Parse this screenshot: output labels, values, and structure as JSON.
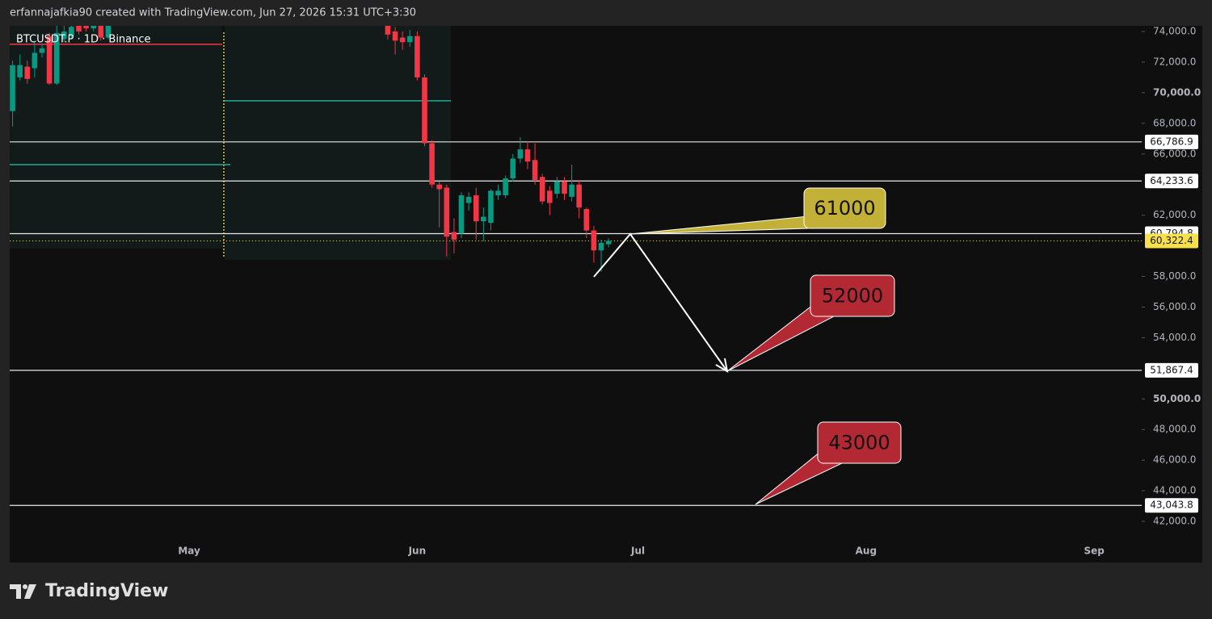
{
  "header": {
    "credit": "erfannajafkia90 created with TradingView.com, Jun 27, 2026 15:31 UTC+3:30",
    "brand": "TradingView"
  },
  "chart_data": {
    "type": "candlestick",
    "title": "BTCUSDT.P · 1D · Binance",
    "up_color": "#089981",
    "down_color": "#f23645",
    "grid": false,
    "categories": [
      null,
      null,
      null,
      null,
      null,
      null,
      null,
      null,
      null,
      null,
      null,
      null,
      null,
      null,
      null,
      null,
      null,
      null,
      null,
      null,
      null,
      null,
      null,
      null,
      "May",
      null,
      null,
      null,
      null,
      null,
      null,
      null,
      null,
      null,
      null,
      null,
      null,
      null,
      null,
      null,
      null,
      null,
      null,
      null,
      null,
      null,
      null,
      null,
      null,
      null,
      null,
      null,
      null,
      null,
      null,
      "Jun",
      null,
      null,
      null,
      null,
      null,
      null,
      null,
      null,
      null,
      null,
      null,
      null,
      null,
      null,
      null,
      null,
      null,
      null,
      null,
      null,
      null,
      null,
      null,
      null,
      null,
      null,
      null,
      null,
      null,
      "Jul",
      null,
      null,
      null,
      null,
      null,
      null,
      null,
      null,
      null,
      null,
      null,
      null,
      null,
      null,
      null,
      null,
      null,
      null,
      null,
      null,
      null,
      null,
      null,
      null,
      null,
      null,
      null,
      null,
      null,
      null,
      "Aug",
      null,
      null,
      null,
      null,
      null,
      null,
      null,
      null,
      null,
      null,
      null,
      null,
      null,
      null,
      null,
      null,
      null,
      null,
      null,
      null,
      null,
      null,
      null,
      null,
      null,
      null,
      null,
      null,
      null,
      null,
      "Sep",
      null,
      null,
      null,
      null,
      null,
      null
    ],
    "open": [
      68800,
      71000,
      71700,
      71600,
      72600,
      73700,
      70600,
      73500,
      73700,
      74400,
      74600,
      74200,
      74600,
      73600,
      null,
      null,
      null,
      null,
      null,
      null,
      null,
      null,
      null,
      null,
      null,
      null,
      null,
      null,
      null,
      null,
      null,
      null,
      null,
      null,
      null,
      null,
      null,
      null,
      null,
      null,
      null,
      null,
      null,
      null,
      null,
      null,
      null,
      null,
      null,
      null,
      null,
      74500,
      74000,
      73600,
      73300,
      73700,
      71000,
      66700,
      64000,
      63800,
      60900,
      60800,
      62800,
      63300,
      61600,
      61500,
      63300,
      63300,
      64400,
      65700,
      66300,
      65600,
      64500,
      63600,
      63400,
      64200,
      63200,
      64000,
      62400,
      61000,
      59700,
      60100,
      null,
      null,
      null,
      null,
      null,
      null,
      null,
      null,
      null,
      null,
      null,
      null,
      null,
      null,
      null,
      null,
      null,
      null,
      null,
      null,
      null,
      null,
      null,
      null,
      null,
      null,
      null,
      null,
      null,
      null,
      null,
      null,
      null,
      null,
      null,
      null,
      null,
      null,
      null,
      null,
      null,
      null,
      null,
      null,
      null,
      null,
      null,
      null,
      null,
      null,
      null,
      null,
      null,
      null,
      null,
      null,
      null,
      null,
      null,
      null,
      null,
      null,
      null,
      null,
      null,
      null,
      null,
      null,
      null,
      null,
      null,
      null
    ],
    "high": [
      72100,
      72500,
      72100,
      73300,
      73200,
      73900,
      74800,
      74600,
      74800,
      74800,
      75000,
      75100,
      74900,
      75000,
      null,
      null,
      null,
      null,
      null,
      null,
      null,
      null,
      null,
      null,
      null,
      null,
      null,
      null,
      null,
      null,
      null,
      null,
      null,
      null,
      null,
      null,
      null,
      null,
      null,
      null,
      null,
      null,
      null,
      null,
      null,
      null,
      null,
      null,
      null,
      null,
      null,
      75000,
      74300,
      74000,
      74100,
      74000,
      71200,
      66900,
      64200,
      64000,
      61800,
      63500,
      63500,
      63800,
      62500,
      63700,
      64000,
      64600,
      66000,
      67100,
      66800,
      66700,
      64700,
      63900,
      64500,
      64500,
      65300,
      64300,
      62500,
      61300,
      60400,
      60500,
      null,
      null,
      null,
      null,
      null,
      null,
      null,
      null,
      null,
      null,
      null,
      null,
      null,
      null,
      null,
      null,
      null,
      null,
      null,
      null,
      null,
      null,
      null,
      null,
      null,
      null,
      null,
      null,
      null,
      null,
      null,
      null,
      null,
      null,
      null,
      null,
      null,
      null,
      null,
      null,
      null,
      null,
      null,
      null,
      null,
      null,
      null,
      null,
      null,
      null,
      null,
      null,
      null,
      null,
      null,
      null,
      null,
      null,
      null,
      null,
      null,
      null,
      null,
      null,
      null,
      null,
      null,
      null,
      null,
      null,
      null,
      null
    ],
    "low": [
      67800,
      70800,
      70600,
      71000,
      72300,
      70500,
      70500,
      73300,
      73500,
      73800,
      74000,
      74000,
      73400,
      73500,
      null,
      null,
      null,
      null,
      null,
      null,
      null,
      null,
      null,
      null,
      null,
      null,
      null,
      null,
      null,
      null,
      null,
      null,
      null,
      null,
      null,
      null,
      null,
      null,
      null,
      null,
      null,
      null,
      null,
      null,
      null,
      null,
      null,
      null,
      null,
      null,
      null,
      73500,
      72500,
      72800,
      73000,
      70800,
      66500,
      63800,
      61200,
      59300,
      59500,
      60500,
      62300,
      60400,
      60300,
      61000,
      63000,
      63100,
      64200,
      65400,
      65000,
      64000,
      62700,
      62000,
      63100,
      63000,
      62900,
      61800,
      60500,
      58900,
      58300,
      59900,
      null,
      null,
      null,
      null,
      null,
      null,
      null,
      null,
      null,
      null,
      null,
      null,
      null,
      null,
      null,
      null,
      null,
      null,
      null,
      null,
      null,
      null,
      null,
      null,
      null,
      null,
      null,
      null,
      null,
      null,
      null,
      null,
      null,
      null,
      null,
      null,
      null,
      null,
      null,
      null,
      null,
      null,
      null,
      null,
      null,
      null,
      null,
      null,
      null,
      null,
      null,
      null,
      null,
      null,
      null,
      null,
      null,
      null,
      null,
      null,
      null,
      null,
      null,
      null,
      null,
      null,
      null,
      null,
      null,
      null,
      null,
      null
    ],
    "close": [
      71800,
      71800,
      70900,
      72600,
      72900,
      70600,
      73900,
      74000,
      74300,
      74000,
      74200,
      74700,
      73600,
      74500,
      null,
      null,
      null,
      null,
      null,
      null,
      null,
      null,
      null,
      null,
      null,
      null,
      null,
      null,
      null,
      null,
      null,
      null,
      null,
      null,
      null,
      null,
      null,
      null,
      null,
      null,
      null,
      null,
      null,
      null,
      null,
      null,
      null,
      null,
      null,
      null,
      null,
      73800,
      73400,
      73300,
      73700,
      71000,
      66700,
      64000,
      63700,
      60600,
      60400,
      63300,
      63200,
      61600,
      61900,
      63600,
      63600,
      64400,
      65700,
      66300,
      65500,
      64300,
      62900,
      62800,
      64200,
      63400,
      64000,
      62500,
      61000,
      59700,
      60200,
      60322.4,
      null,
      null,
      null,
      null,
      null,
      null,
      null,
      null,
      null,
      null,
      null,
      null,
      null,
      null,
      null,
      null,
      null,
      null,
      null,
      null,
      null,
      null,
      null,
      null,
      null,
      null,
      null,
      null,
      null,
      null,
      null,
      null,
      null,
      null,
      null,
      null,
      null,
      null,
      null,
      null,
      null,
      null,
      null,
      null,
      null,
      null,
      null,
      null,
      null,
      null,
      null,
      null,
      null,
      null,
      null,
      null,
      null,
      null,
      null,
      null,
      null,
      null,
      null,
      null,
      null,
      null,
      null,
      null,
      null,
      null,
      null,
      null
    ],
    "ylim": [
      40895,
      74369
    ],
    "yticks": [
      {
        "value": 74000,
        "label": "74,000.0"
      },
      {
        "value": 72000,
        "label": "72,000.0"
      },
      {
        "value": 70000,
        "label": "70,000.0"
      },
      {
        "value": 68000,
        "label": "68,000.0"
      },
      {
        "value": 66000,
        "label": "66,000.0"
      },
      {
        "value": 62000,
        "label": "62,000.0"
      },
      {
        "value": 58000,
        "label": "58,000.0"
      },
      {
        "value": 56000,
        "label": "56,000.0"
      },
      {
        "value": 54000,
        "label": "54,000.0"
      },
      {
        "value": 50000,
        "label": "50,000.0"
      },
      {
        "value": 48000,
        "label": "48,000.0"
      },
      {
        "value": 46000,
        "label": "46,000.0"
      },
      {
        "value": 44000,
        "label": "44,000.0"
      },
      {
        "value": 42000,
        "label": "42,000.0"
      }
    ],
    "levels": [
      {
        "value": 66786.9,
        "label": "66,786.9"
      },
      {
        "value": 64233.6,
        "label": "64,233.6"
      },
      {
        "value": 60794.8,
        "label": "60,794.8"
      },
      {
        "value": 51867.4,
        "label": "51,867.4"
      },
      {
        "value": 43043.8,
        "label": "43,043.8"
      }
    ],
    "last_price": {
      "value": 60322.4,
      "label": "60,322.4",
      "color": "#f7e04b"
    },
    "profile_lines": [
      {
        "value": 73160,
        "color": "#f23645"
      },
      {
        "value": 69470,
        "color": "#22ab94"
      },
      {
        "value": 65300,
        "color": "#22ab94"
      }
    ],
    "annotations": [
      {
        "text": "61000",
        "color": "#c2b136"
      },
      {
        "text": "52000",
        "color": "#b22833"
      },
      {
        "text": "43000",
        "color": "#b22833"
      }
    ]
  }
}
